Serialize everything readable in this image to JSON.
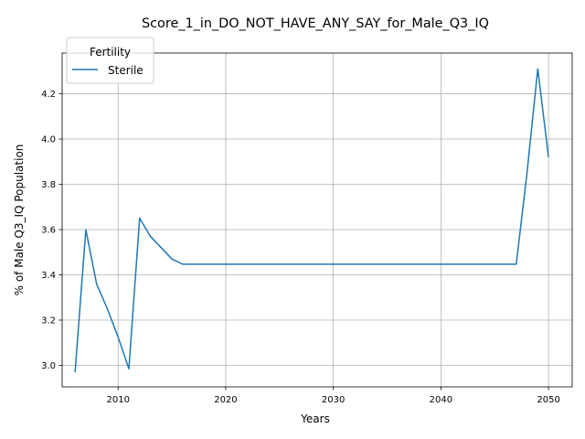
{
  "chart_data": {
    "type": "line",
    "title": "Score_1_in_DO_NOT_HAVE_ANY_SAY_for_Male_Q3_IQ",
    "xlabel": "Years",
    "ylabel": "% of Male Q3_IQ Population",
    "xlim": [
      2004.8,
      2052.2
    ],
    "ylim": [
      2.905,
      4.38
    ],
    "xticks": [
      2010,
      2020,
      2030,
      2040,
      2050
    ],
    "yticks": [
      3.0,
      3.2,
      3.4,
      3.6,
      3.8,
      4.0,
      4.2
    ],
    "xtick_labels": [
      "2010",
      "2020",
      "2030",
      "2040",
      "2050"
    ],
    "ytick_labels": [
      "3.0",
      "3.2",
      "3.4",
      "3.6",
      "3.8",
      "4.0",
      "4.2"
    ],
    "grid": true,
    "legend": {
      "title": "Fertility",
      "position": "top-left"
    },
    "series": [
      {
        "name": "Sterile",
        "color": "#1f77b4",
        "x": [
          2006,
          2007,
          2008,
          2009,
          2010,
          2011,
          2012,
          2013,
          2014,
          2015,
          2016,
          2017,
          2018,
          2019,
          2020,
          2021,
          2022,
          2023,
          2024,
          2025,
          2026,
          2027,
          2028,
          2029,
          2030,
          2031,
          2032,
          2033,
          2034,
          2035,
          2036,
          2037,
          2038,
          2039,
          2040,
          2041,
          2042,
          2043,
          2044,
          2045,
          2046,
          2047,
          2048,
          2049,
          2050
        ],
        "y": [
          2.97,
          3.6,
          3.36,
          3.25,
          3.125,
          2.985,
          3.65,
          3.57,
          3.52,
          3.47,
          3.447,
          3.447,
          3.447,
          3.447,
          3.447,
          3.447,
          3.447,
          3.447,
          3.447,
          3.447,
          3.447,
          3.447,
          3.447,
          3.447,
          3.447,
          3.447,
          3.447,
          3.447,
          3.447,
          3.447,
          3.447,
          3.447,
          3.447,
          3.447,
          3.447,
          3.447,
          3.447,
          3.447,
          3.447,
          3.447,
          3.447,
          3.447,
          3.85,
          4.31,
          3.92
        ]
      }
    ]
  }
}
